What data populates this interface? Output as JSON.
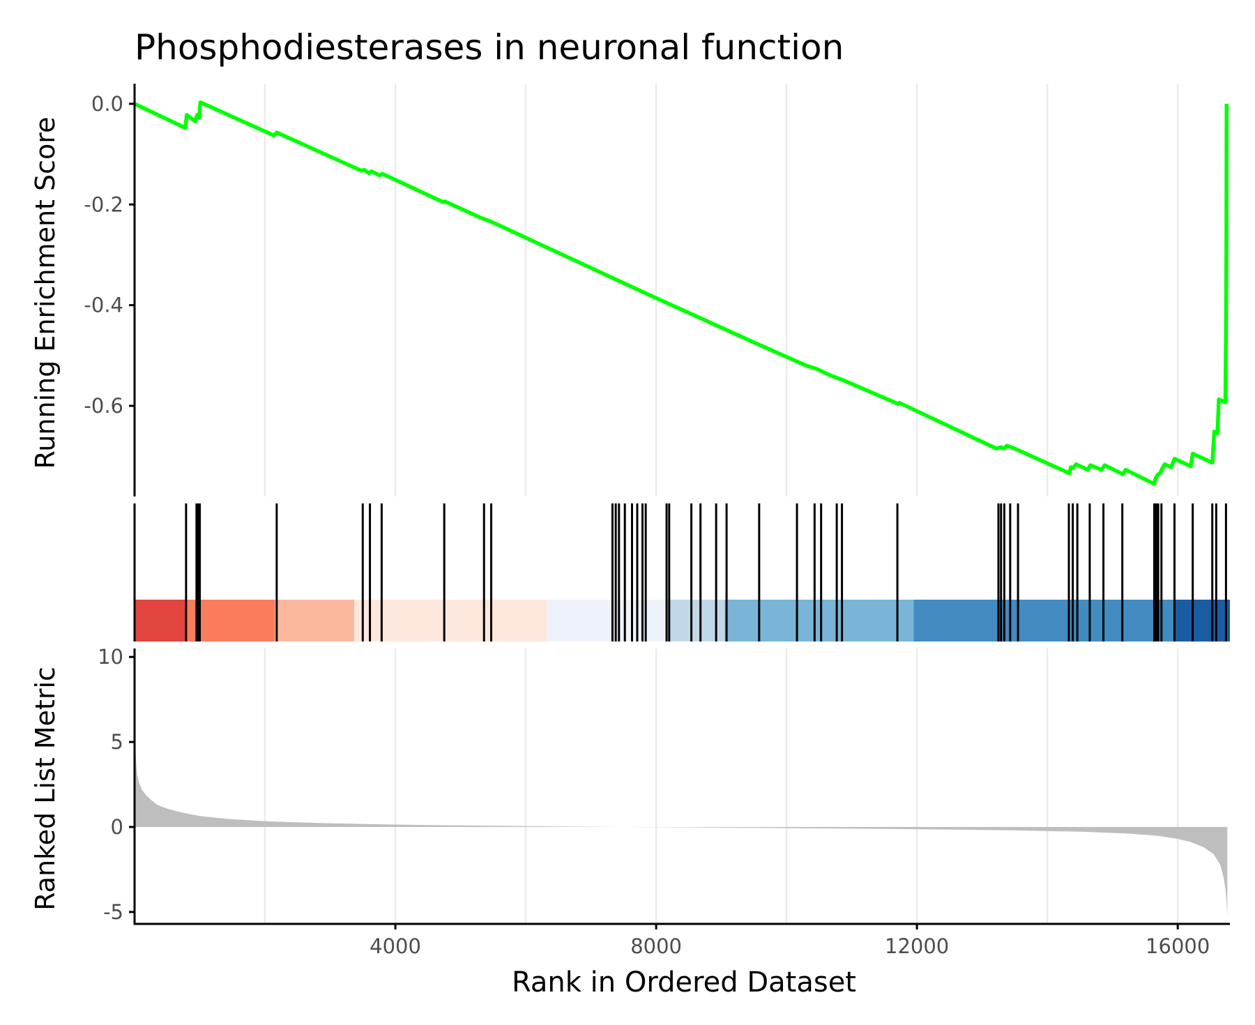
{
  "chart_data": {
    "type": "line",
    "title": "Phosphodiesterases in neuronal function",
    "xlabel": "Rank in Ordered Dataset",
    "xlim": [
      0,
      16800
    ],
    "x_ticks": [
      4000,
      8000,
      12000,
      16000
    ],
    "x_tick_labels": [
      "4000",
      "8000",
      "12000",
      "16000"
    ],
    "x_grid": [
      2000,
      4000,
      6000,
      8000,
      10000,
      12000,
      14000,
      16000
    ],
    "grid": true,
    "legend": "none",
    "panels": [
      {
        "name": "running-enrichment",
        "ylabel": "Running Enrichment Score",
        "ylim": [
          -0.78,
          0.04
        ],
        "y_ticks": [
          0.0,
          -0.2,
          -0.4,
          -0.6
        ],
        "y_tick_labels": [
          "0.0",
          "-0.2",
          "-0.4",
          "-0.6"
        ],
        "line_color": "#00ff00",
        "points": [
          [
            0,
            0.0
          ],
          [
            780,
            -0.048
          ],
          [
            800,
            -0.022
          ],
          [
            930,
            -0.035
          ],
          [
            960,
            -0.022
          ],
          [
            990,
            -0.028
          ],
          [
            1010,
            0.003
          ],
          [
            2140,
            -0.063
          ],
          [
            2180,
            -0.057
          ],
          [
            3480,
            -0.133
          ],
          [
            3520,
            -0.131
          ],
          [
            3600,
            -0.138
          ],
          [
            3630,
            -0.134
          ],
          [
            3760,
            -0.142
          ],
          [
            3800,
            -0.139
          ],
          [
            4730,
            -0.195
          ],
          [
            4760,
            -0.194
          ],
          [
            5320,
            -0.227
          ],
          [
            5450,
            -0.233
          ],
          [
            7300,
            -0.344
          ],
          [
            7900,
            -0.38
          ],
          [
            9500,
            -0.474
          ],
          [
            10300,
            -0.52
          ],
          [
            10450,
            -0.526
          ],
          [
            10700,
            -0.541
          ],
          [
            10850,
            -0.548
          ],
          [
            11710,
            -0.596
          ],
          [
            11730,
            -0.594
          ],
          [
            13220,
            -0.685
          ],
          [
            13290,
            -0.682
          ],
          [
            13330,
            -0.685
          ],
          [
            13380,
            -0.679
          ],
          [
            13500,
            -0.685
          ],
          [
            14340,
            -0.734
          ],
          [
            14360,
            -0.722
          ],
          [
            14400,
            -0.723
          ],
          [
            14440,
            -0.716
          ],
          [
            14620,
            -0.727
          ],
          [
            14660,
            -0.718
          ],
          [
            14830,
            -0.727
          ],
          [
            14880,
            -0.718
          ],
          [
            15160,
            -0.736
          ],
          [
            15200,
            -0.727
          ],
          [
            15640,
            -0.755
          ],
          [
            15660,
            -0.744
          ],
          [
            15700,
            -0.736
          ],
          [
            15730,
            -0.734
          ],
          [
            15760,
            -0.725
          ],
          [
            15800,
            -0.716
          ],
          [
            15900,
            -0.722
          ],
          [
            15950,
            -0.705
          ],
          [
            16200,
            -0.72
          ],
          [
            16230,
            -0.695
          ],
          [
            16530,
            -0.713
          ],
          [
            16560,
            -0.651
          ],
          [
            16610,
            -0.655
          ],
          [
            16630,
            -0.587
          ],
          [
            16730,
            -0.593
          ],
          [
            16740,
            -0.45
          ],
          [
            16745,
            -0.29
          ],
          [
            16750,
            0.0
          ]
        ]
      },
      {
        "name": "gene-hits",
        "ticks_x": [
          790,
          950,
          975,
          1000,
          2180,
          3500,
          3610,
          3790,
          4750,
          5360,
          5470,
          7330,
          7380,
          7430,
          7520,
          7630,
          7710,
          7790,
          7840,
          8160,
          8200,
          8540,
          8680,
          8920,
          9080,
          9580,
          10160,
          10430,
          10530,
          10770,
          10850,
          11700,
          13250,
          13290,
          13340,
          13430,
          13550,
          14330,
          14390,
          14460,
          14650,
          14860,
          15150,
          15640,
          15670,
          15700,
          15750,
          15950,
          16230,
          16530,
          16590,
          16740
        ],
        "color_bands": [
          {
            "from": 0,
            "to": 800,
            "color": "#e2443e"
          },
          {
            "from": 800,
            "to": 2150,
            "color": "#fb7c5c"
          },
          {
            "from": 2150,
            "to": 3370,
            "color": "#fbb89c"
          },
          {
            "from": 3370,
            "to": 6320,
            "color": "#fee7dd"
          },
          {
            "from": 6320,
            "to": 8150,
            "color": "#eef2fb"
          },
          {
            "from": 8150,
            "to": 9050,
            "color": "#c1d8e8"
          },
          {
            "from": 9050,
            "to": 11950,
            "color": "#7ab5d8"
          },
          {
            "from": 11950,
            "to": 15950,
            "color": "#428cc1"
          },
          {
            "from": 15950,
            "to": 16800,
            "color": "#1a5ca3"
          }
        ]
      },
      {
        "name": "ranked-list-metric",
        "ylabel": "Ranked List Metric",
        "ylim": [
          -5.7,
          10.5
        ],
        "y_ticks": [
          10,
          5,
          0,
          -5
        ],
        "y_tick_labels": [
          "10",
          "5",
          "0",
          "-5"
        ],
        "fill_color": "#bebebe",
        "points": [
          [
            0,
            9.6
          ],
          [
            8,
            5.5
          ],
          [
            20,
            4.0
          ],
          [
            40,
            3.1
          ],
          [
            70,
            2.6
          ],
          [
            110,
            2.2
          ],
          [
            170,
            1.9
          ],
          [
            250,
            1.6
          ],
          [
            350,
            1.3
          ],
          [
            500,
            1.08
          ],
          [
            700,
            0.87
          ],
          [
            1000,
            0.65
          ],
          [
            1400,
            0.48
          ],
          [
            2000,
            0.34
          ],
          [
            2800,
            0.24
          ],
          [
            3600,
            0.17
          ],
          [
            4500,
            0.11
          ],
          [
            5500,
            0.07
          ],
          [
            6500,
            0.03
          ],
          [
            7500,
            0.0
          ],
          [
            8500,
            -0.02
          ],
          [
            9500,
            -0.05
          ],
          [
            10500,
            -0.08
          ],
          [
            11500,
            -0.11
          ],
          [
            12500,
            -0.15
          ],
          [
            13500,
            -0.2
          ],
          [
            14500,
            -0.28
          ],
          [
            15200,
            -0.38
          ],
          [
            15700,
            -0.52
          ],
          [
            16000,
            -0.7
          ],
          [
            16200,
            -0.88
          ],
          [
            16400,
            -1.2
          ],
          [
            16550,
            -1.6
          ],
          [
            16650,
            -2.2
          ],
          [
            16700,
            -2.9
          ],
          [
            16730,
            -3.6
          ],
          [
            16750,
            -4.4
          ],
          [
            16760,
            -5.3
          ],
          [
            16760,
            0.0
          ]
        ]
      }
    ]
  }
}
